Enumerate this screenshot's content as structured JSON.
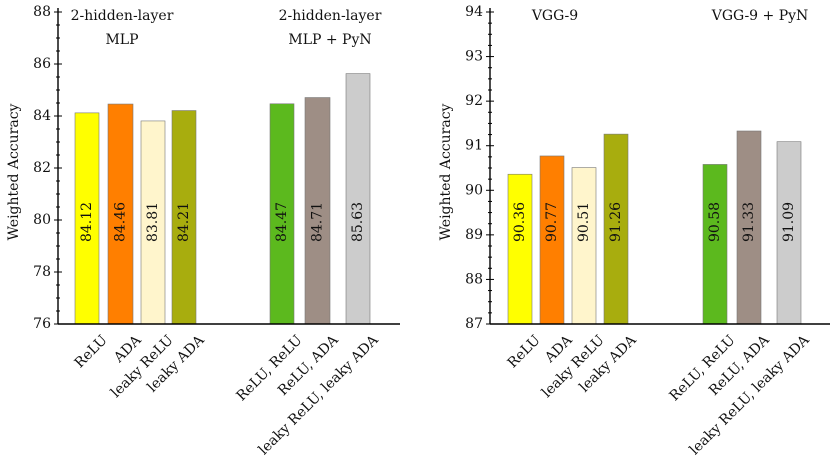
{
  "chart_data": [
    {
      "type": "bar",
      "ylabel": "Weighted Accuracy",
      "ylim": [
        76,
        88
      ],
      "yticks": [
        76,
        78,
        80,
        82,
        84,
        86,
        88
      ],
      "groups": [
        {
          "title_lines": [
            "2-hidden-layer",
            "MLP"
          ],
          "bars": [
            {
              "label": "ReLU",
              "value": 84.12,
              "color": "#ffff00"
            },
            {
              "label": "ADA",
              "value": 84.46,
              "color": "#ff7f00"
            },
            {
              "label": "leaky ReLU",
              "value": 83.81,
              "color": "#fff5cc"
            },
            {
              "label": "leaky ADA",
              "value": 84.21,
              "color": "#a8ad0e"
            }
          ]
        },
        {
          "title_lines": [
            "2-hidden-layer",
            "MLP + PyN"
          ],
          "bars": [
            {
              "label": "ReLU, ReLU",
              "value": 84.47,
              "color": "#5cb91e"
            },
            {
              "label": "ReLU, ADA",
              "value": 84.71,
              "color": "#9e8e85"
            },
            {
              "label": "leaky ReLU, leaky ADA",
              "value": 85.63,
              "color": "#cccccc"
            }
          ]
        }
      ]
    },
    {
      "type": "bar",
      "ylabel": "Weighted Accuracy",
      "ylim": [
        87,
        94
      ],
      "yticks": [
        87,
        88,
        89,
        90,
        91,
        92,
        93,
        94
      ],
      "groups": [
        {
          "title_lines": [
            "VGG-9"
          ],
          "bars": [
            {
              "label": "ReLU",
              "value": 90.36,
              "color": "#ffff00"
            },
            {
              "label": "ADA",
              "value": 90.77,
              "color": "#ff7f00"
            },
            {
              "label": "leaky ReLU",
              "value": 90.51,
              "color": "#fff5cc"
            },
            {
              "label": "leaky ADA",
              "value": 91.26,
              "color": "#a8ad0e"
            }
          ]
        },
        {
          "title_lines": [
            "VGG-9 + PyN"
          ],
          "bars": [
            {
              "label": "ReLU, ReLU",
              "value": 90.58,
              "color": "#5cb91e"
            },
            {
              "label": "ReLU, ADA",
              "value": 91.33,
              "color": "#9e8e85"
            },
            {
              "label": "leaky ReLU, leaky ADA",
              "value": 91.09,
              "color": "#cccccc"
            }
          ]
        }
      ]
    }
  ]
}
